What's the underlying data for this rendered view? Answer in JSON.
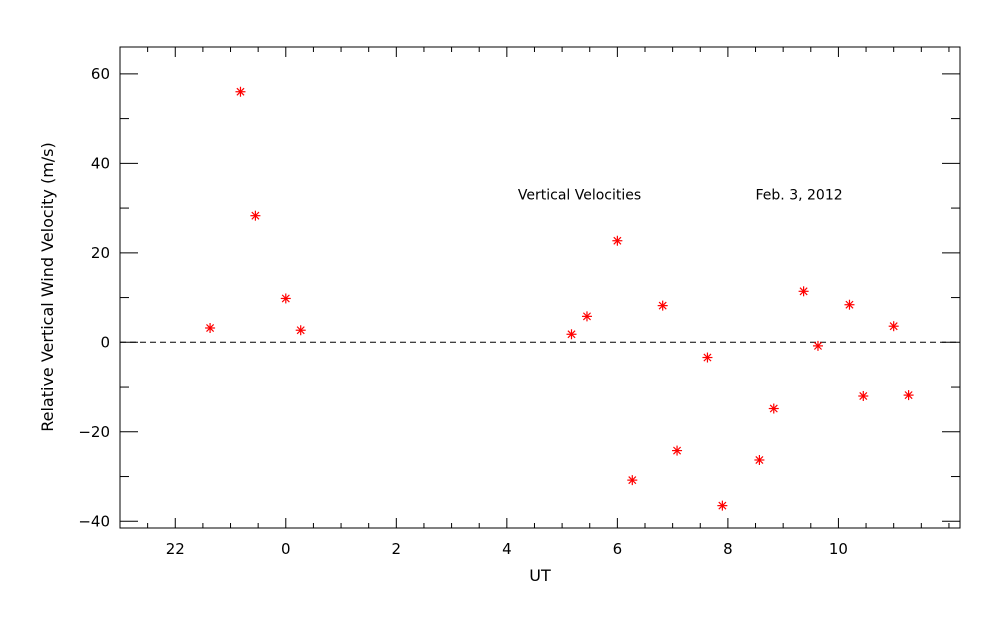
{
  "chart_data": {
    "type": "scatter",
    "title": "",
    "xlabel": "UT",
    "ylabel": "Relative Vertical Wind Velocity (m/s)",
    "xlim": [
      -3,
      12.2
    ],
    "ylim": [
      -41.5,
      66
    ],
    "x_major_ticks": [
      -2,
      0,
      2,
      4,
      6,
      8,
      10
    ],
    "x_tick_labels": [
      "22",
      "0",
      "2",
      "4",
      "6",
      "8",
      "10"
    ],
    "x_minor_step": 0.5,
    "y_major_ticks": [
      -40,
      -20,
      0,
      20,
      40,
      60
    ],
    "y_tick_labels": [
      "−40",
      "−20",
      "0",
      "20",
      "40",
      "60"
    ],
    "y_minor_step": 10,
    "reference_line": {
      "y": 0,
      "style": "dashed"
    },
    "grid": false,
    "marker": "asterisk",
    "marker_color": "#ff0000",
    "annotations": [
      {
        "text": "Vertical Velocities",
        "x": 4.2,
        "y": 33
      },
      {
        "text": "Feb. 3, 2012",
        "x": 8.5,
        "y": 33
      }
    ],
    "points": [
      {
        "x": -1.37,
        "y": 3.2
      },
      {
        "x": -0.82,
        "y": 56
      },
      {
        "x": -0.55,
        "y": 28.3
      },
      {
        "x": 0.0,
        "y": 9.8
      },
      {
        "x": 0.27,
        "y": 2.7
      },
      {
        "x": 5.17,
        "y": 1.8
      },
      {
        "x": 5.45,
        "y": 5.8
      },
      {
        "x": 6.0,
        "y": 22.7
      },
      {
        "x": 6.27,
        "y": -30.8
      },
      {
        "x": 6.82,
        "y": 8.2
      },
      {
        "x": 7.08,
        "y": -24.2
      },
      {
        "x": 7.63,
        "y": -3.4
      },
      {
        "x": 7.9,
        "y": -36.5
      },
      {
        "x": 8.57,
        "y": -26.3
      },
      {
        "x": 8.83,
        "y": -14.8
      },
      {
        "x": 9.37,
        "y": 11.4
      },
      {
        "x": 9.63,
        "y": -0.8
      },
      {
        "x": 10.2,
        "y": 8.4
      },
      {
        "x": 10.45,
        "y": -12
      },
      {
        "x": 11.0,
        "y": 3.6
      },
      {
        "x": 11.27,
        "y": -11.8
      }
    ]
  }
}
